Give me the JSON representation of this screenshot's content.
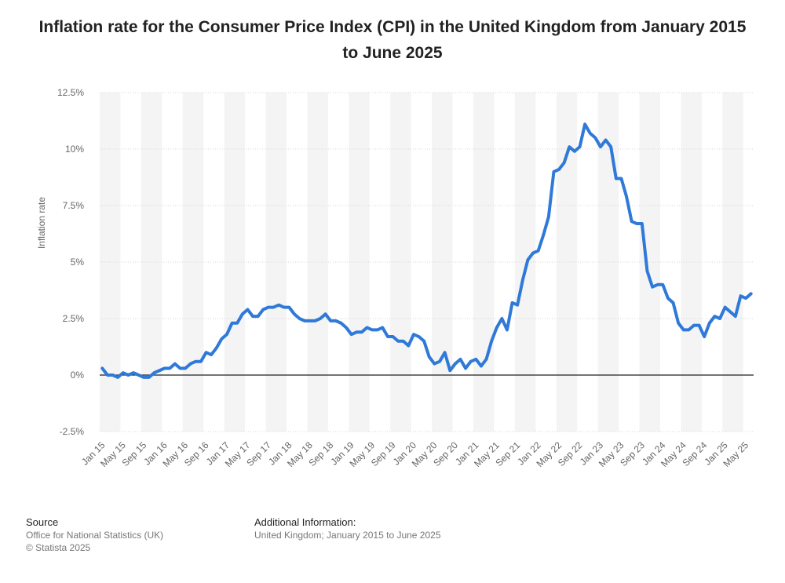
{
  "title": "Inflation rate for the Consumer Price Index (CPI) in the United Kingdom from January 2015 to June 2025",
  "footer": {
    "source_heading": "Source",
    "source_lines": [
      "Office for National Statistics (UK)",
      "© Statista 2025"
    ],
    "info_heading": "Additional Information:",
    "info_text": "United Kingdom; January 2015 to June 2025"
  },
  "chart_data": {
    "type": "line",
    "title": "Inflation rate for the Consumer Price Index (CPI) in the United Kingdom from January 2015 to June 2025",
    "ylabel": "Inflation rate",
    "xlabel": "",
    "ylim": [
      -2.5,
      12.5
    ],
    "yticks": [
      -2.5,
      0,
      2.5,
      5,
      7.5,
      10,
      12.5
    ],
    "ytick_labels": [
      "-2.5%",
      "0%",
      "2.5%",
      "5%",
      "7.5%",
      "10%",
      "12.5%"
    ],
    "xtick_labels": [
      "Jan 15",
      "May 15",
      "Sep 15",
      "Jan 16",
      "May 16",
      "Sep 16",
      "Jan 17",
      "May 17",
      "Sep 17",
      "Jan 18",
      "May 18",
      "Sep 18",
      "Jan 19",
      "May 19",
      "Sep 19",
      "Jan 20",
      "May 20",
      "Sep 20",
      "Jan 21",
      "May 21",
      "Sep 21",
      "Jan 22",
      "May 22",
      "Sep 22",
      "Jan 23",
      "May 23",
      "Sep 23",
      "Jan 24",
      "May 24",
      "Sep 24",
      "Jan 25",
      "May 25"
    ],
    "grid": true,
    "line_color": "#2f79d8",
    "series": [
      {
        "values": [
          0.3,
          0.0,
          0.0,
          -0.1,
          0.1,
          0.0,
          0.1,
          0.0,
          -0.1,
          -0.1,
          0.1,
          0.2,
          0.3,
          0.3,
          0.5,
          0.3,
          0.3,
          0.5,
          0.6,
          0.6,
          1.0,
          0.9,
          1.2,
          1.6,
          1.8,
          2.3,
          2.3,
          2.7,
          2.9,
          2.6,
          2.6,
          2.9,
          3.0,
          3.0,
          3.1,
          3.0,
          3.0,
          2.7,
          2.5,
          2.4,
          2.4,
          2.4,
          2.5,
          2.7,
          2.4,
          2.4,
          2.3,
          2.1,
          1.8,
          1.9,
          1.9,
          2.1,
          2.0,
          2.0,
          2.1,
          1.7,
          1.7,
          1.5,
          1.5,
          1.3,
          1.8,
          1.7,
          1.5,
          0.8,
          0.5,
          0.6,
          1.0,
          0.2,
          0.5,
          0.7,
          0.3,
          0.6,
          0.7,
          0.4,
          0.7,
          1.5,
          2.1,
          2.5,
          2.0,
          3.2,
          3.1,
          4.2,
          5.1,
          5.4,
          5.5,
          6.2,
          7.0,
          9.0,
          9.1,
          9.4,
          10.1,
          9.9,
          10.1,
          11.1,
          10.7,
          10.5,
          10.1,
          10.4,
          10.1,
          8.7,
          8.7,
          7.9,
          6.8,
          6.7,
          6.7,
          4.6,
          3.9,
          4.0,
          4.0,
          3.4,
          3.2,
          2.3,
          2.0,
          2.0,
          2.2,
          2.2,
          1.7,
          2.3,
          2.6,
          2.5,
          3.0,
          2.8,
          2.6,
          3.5,
          3.4,
          3.6
        ]
      }
    ]
  }
}
